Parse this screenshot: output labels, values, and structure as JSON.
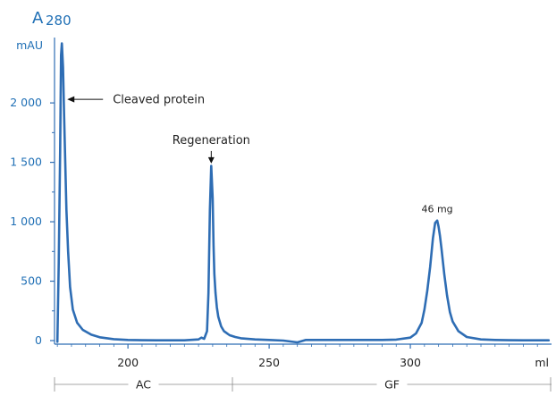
{
  "chart_data": {
    "type": "line",
    "ylabel_main": "A",
    "ylabel_sub": "280",
    "yunit": "mAU",
    "xunit": "ml",
    "y_ticks": [
      {
        "value": 0,
        "label": "0"
      },
      {
        "value": 500,
        "label": "500"
      },
      {
        "value": 1000,
        "label": "1 000"
      },
      {
        "value": 1500,
        "label": "1 500"
      },
      {
        "value": 2000,
        "label": "2 000"
      }
    ],
    "x_ticks": [
      {
        "value": 200,
        "label": "200"
      },
      {
        "value": 250,
        "label": "250"
      },
      {
        "value": 300,
        "label": "300"
      }
    ],
    "xlim": [
      174,
      350
    ],
    "ylim": [
      -30,
      2550
    ],
    "series": [
      {
        "color": "#2e6db4",
        "x": [
          175,
          175.5,
          176,
          176.3,
          176.6,
          177,
          177.4,
          177.8,
          178.2,
          178.8,
          179.5,
          180.5,
          182,
          184,
          187,
          190,
          195,
          200,
          205,
          210,
          215,
          220,
          225,
          226,
          227,
          228,
          228.5,
          229,
          229.5,
          230,
          230.3,
          230.6,
          231,
          231.5,
          232,
          233,
          234,
          236,
          238,
          240,
          245,
          250,
          255,
          260,
          263,
          265,
          270,
          280,
          290,
          295,
          300,
          302,
          304,
          305,
          306,
          307,
          308,
          308.8,
          309.5,
          310,
          310.5,
          311,
          312,
          313,
          314,
          315,
          317,
          320,
          325,
          330,
          335,
          340,
          345,
          349
        ],
        "y": [
          -10,
          650,
          1600,
          2400,
          2500,
          2300,
          1900,
          1500,
          1100,
          750,
          450,
          260,
          150,
          90,
          50,
          28,
          12,
          5,
          3,
          2,
          2,
          2,
          10,
          25,
          15,
          80,
          400,
          1100,
          1470,
          1200,
          800,
          560,
          400,
          280,
          200,
          120,
          80,
          45,
          30,
          20,
          10,
          5,
          0,
          -15,
          5,
          5,
          5,
          5,
          5,
          8,
          25,
          60,
          150,
          260,
          420,
          620,
          860,
          990,
          1010,
          960,
          880,
          780,
          560,
          380,
          240,
          160,
          80,
          30,
          10,
          5,
          3,
          2,
          2,
          2
        ]
      }
    ],
    "annotations": [
      {
        "text": "Cleaved protein",
        "x": 178.5,
        "y": 2030,
        "type": "arrow-left"
      },
      {
        "text": "Regeneration",
        "x": 229.5,
        "y": 1490,
        "type": "arrow-down"
      },
      {
        "text": "46 mg",
        "x": 309.5,
        "y": 1080,
        "type": "label"
      }
    ],
    "regions": [
      {
        "label": "AC",
        "start": 174,
        "end": 237
      },
      {
        "label": "GF",
        "start": 237,
        "end": 350
      }
    ]
  }
}
